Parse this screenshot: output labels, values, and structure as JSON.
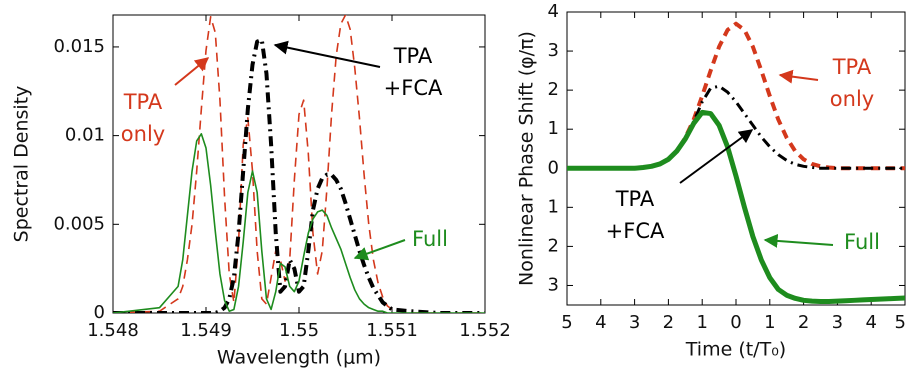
{
  "chart_data": [
    {
      "type": "line",
      "xlabel": "Wavelength (μm)",
      "ylabel": "Spectral Density",
      "xlim": [
        1.548,
        1.552
      ],
      "xticks": [
        1.548,
        1.549,
        1.55,
        1.551,
        1.552
      ],
      "ylim": [
        0,
        0.0168
      ],
      "yticks": [
        0,
        0.005,
        0.01,
        0.015
      ],
      "x": [
        1.548,
        1.5485,
        1.5487,
        1.54875,
        1.5488,
        1.54885,
        1.5489,
        1.54895,
        1.549,
        1.54905,
        1.5491,
        1.54915,
        1.5492,
        1.54925,
        1.5493,
        1.54935,
        1.5494,
        1.54945,
        1.5495,
        1.54955,
        1.5496,
        1.54965,
        1.5497,
        1.54975,
        1.5498,
        1.54985,
        1.5499,
        1.54995,
        1.55,
        1.55005,
        1.5501,
        1.55015,
        1.5502,
        1.55025,
        1.5503,
        1.55035,
        1.5504,
        1.55045,
        1.5505,
        1.55055,
        1.5506,
        1.55065,
        1.5507,
        1.55075,
        1.5508,
        1.55085,
        1.5509,
        1.55095,
        1.551,
        1.5512,
        1.5515,
        1.552
      ],
      "series": [
        {
          "color": "#d4381c",
          "linestyle": "dashed",
          "linewidth": 1.6,
          "values": [
            0,
            0.0001,
            0.0008,
            0.0015,
            0.003,
            0.005,
            0.008,
            0.0115,
            0.0148,
            0.0167,
            0.0158,
            0.012,
            0.0065,
            0.0022,
            0.0006,
            0.004,
            0.0095,
            0.011,
            0.008,
            0.0035,
            0.0008,
            0.0005,
            0.002,
            0.0035,
            0.003,
            0.0018,
            0.003,
            0.0075,
            0.0112,
            0.012,
            0.009,
            0.0045,
            0.0022,
            0.0035,
            0.007,
            0.0112,
            0.0145,
            0.0163,
            0.0168,
            0.016,
            0.0138,
            0.011,
            0.0078,
            0.005,
            0.003,
            0.0017,
            0.0009,
            0.0004,
            0.0002,
            0,
            0,
            0
          ]
        },
        {
          "color": "#000000",
          "linestyle": "dashdot",
          "linewidth": 4,
          "values": [
            0,
            0,
            0,
            0,
            0,
            0,
            0,
            0,
            0,
            0,
            0,
            0.0001,
            0.0003,
            0.0008,
            0.002,
            0.0045,
            0.008,
            0.0115,
            0.014,
            0.0153,
            0.0154,
            0.0135,
            0.0095,
            0.0045,
            0.0012,
            0.0015,
            0.003,
            0.0025,
            0.0012,
            0.0015,
            0.0035,
            0.0058,
            0.007,
            0.0076,
            0.0078,
            0.0078,
            0.0075,
            0.007,
            0.0062,
            0.0053,
            0.0044,
            0.0035,
            0.0027,
            0.002,
            0.0014,
            0.001,
            0.0006,
            0.0004,
            0.0002,
            0.0001,
            0,
            0
          ]
        },
        {
          "color": "#1e8c1e",
          "linestyle": "solid",
          "linewidth": 1.6,
          "values": [
            0,
            0.0003,
            0.0015,
            0.003,
            0.0055,
            0.008,
            0.0097,
            0.0101,
            0.0093,
            0.0072,
            0.0046,
            0.0022,
            0.0007,
            0.0001,
            0.0002,
            0.0015,
            0.004,
            0.0068,
            0.008,
            0.0068,
            0.0035,
            0.0008,
            0.0002,
            0.0012,
            0.0028,
            0.0026,
            0.0015,
            0.0012,
            0.0018,
            0.0032,
            0.0045,
            0.0053,
            0.0057,
            0.0058,
            0.0055,
            0.0048,
            0.0042,
            0.0036,
            0.0028,
            0.002,
            0.0013,
            0.0008,
            0.0005,
            0.0003,
            0.0002,
            0.0001,
            0.0001,
            0,
            0,
            0,
            0,
            0
          ]
        }
      ],
      "annotations": [
        {
          "lines": [
            "TPA",
            "only"
          ],
          "color": "#d4381c"
        },
        {
          "lines": [
            "TPA",
            "+FCA"
          ],
          "color": "#000000"
        },
        {
          "lines": [
            "Full"
          ],
          "color": "#1e8c1e"
        }
      ]
    },
    {
      "type": "line",
      "xlabel": "Time (t/T₀)",
      "ylabel": "Nonlinear Phase Shift (φ/π)",
      "xlim": [
        -5,
        5
      ],
      "xticks": [
        {
          "value": -5,
          "label": "5"
        },
        {
          "value": -4,
          "label": "4"
        },
        {
          "value": -3,
          "label": "3"
        },
        {
          "value": -2,
          "label": "2"
        },
        {
          "value": -1,
          "label": "1"
        },
        0,
        1,
        2,
        3,
        4,
        5
      ],
      "ylim": [
        -3.5,
        4
      ],
      "yticks": [
        4,
        3,
        2,
        1,
        0,
        {
          "value": -1,
          "label": "1"
        },
        {
          "value": -2,
          "label": "2"
        },
        {
          "value": -3,
          "label": "3"
        }
      ],
      "x": [
        -5,
        -4.75,
        -4.5,
        -4.25,
        -4,
        -3.75,
        -3.5,
        -3.25,
        -3,
        -2.75,
        -2.5,
        -2.25,
        -2,
        -1.75,
        -1.5,
        -1.25,
        -1,
        -0.75,
        -0.5,
        -0.25,
        0,
        0.25,
        0.5,
        0.75,
        1,
        1.25,
        1.5,
        1.75,
        2,
        2.25,
        2.5,
        2.75,
        3,
        3.25,
        3.5,
        3.75,
        4,
        4.25,
        4.5,
        4.75,
        5
      ],
      "series": [
        {
          "color": "#d4381c",
          "linestyle": "dashed",
          "linewidth": 4,
          "values": [
            0,
            0,
            0,
            0,
            0,
            0,
            0,
            0,
            0,
            0.02,
            0.05,
            0.11,
            0.23,
            0.44,
            0.78,
            1.25,
            1.85,
            2.5,
            3.11,
            3.54,
            3.7,
            3.54,
            3.11,
            2.5,
            1.85,
            1.25,
            0.78,
            0.44,
            0.23,
            0.11,
            0.05,
            0.02,
            0,
            0,
            0,
            0,
            0,
            0,
            0,
            0,
            0
          ]
        },
        {
          "color": "#000000",
          "linestyle": "dashdot",
          "linewidth": 3,
          "values": [
            0,
            0,
            0,
            0,
            0,
            0,
            0,
            0,
            0,
            0.02,
            0.05,
            0.11,
            0.23,
            0.44,
            0.77,
            1.2,
            1.7,
            2.05,
            2.1,
            1.95,
            1.7,
            1.4,
            1.1,
            0.8,
            0.55,
            0.35,
            0.2,
            0.1,
            0.05,
            0.02,
            0,
            0,
            0,
            0,
            0,
            0,
            0,
            0,
            0,
            0,
            0
          ]
        },
        {
          "color": "#1e8c1e",
          "linestyle": "solid",
          "linewidth": 5,
          "values": [
            0,
            0,
            0,
            0,
            0,
            0,
            0,
            0,
            0,
            0.02,
            0.05,
            0.11,
            0.23,
            0.44,
            0.75,
            1.15,
            1.43,
            1.4,
            1.1,
            0.55,
            -0.2,
            -1.0,
            -1.75,
            -2.35,
            -2.8,
            -3.1,
            -3.25,
            -3.33,
            -3.38,
            -3.4,
            -3.41,
            -3.41,
            -3.4,
            -3.39,
            -3.38,
            -3.37,
            -3.36,
            -3.35,
            -3.34,
            -3.33,
            -3.32
          ]
        }
      ],
      "annotations": [
        {
          "lines": [
            "TPA",
            "only"
          ],
          "color": "#d4381c"
        },
        {
          "lines": [
            "TPA",
            "+FCA"
          ],
          "color": "#000000"
        },
        {
          "lines": [
            "Full"
          ],
          "color": "#1e8c1e"
        }
      ]
    }
  ]
}
